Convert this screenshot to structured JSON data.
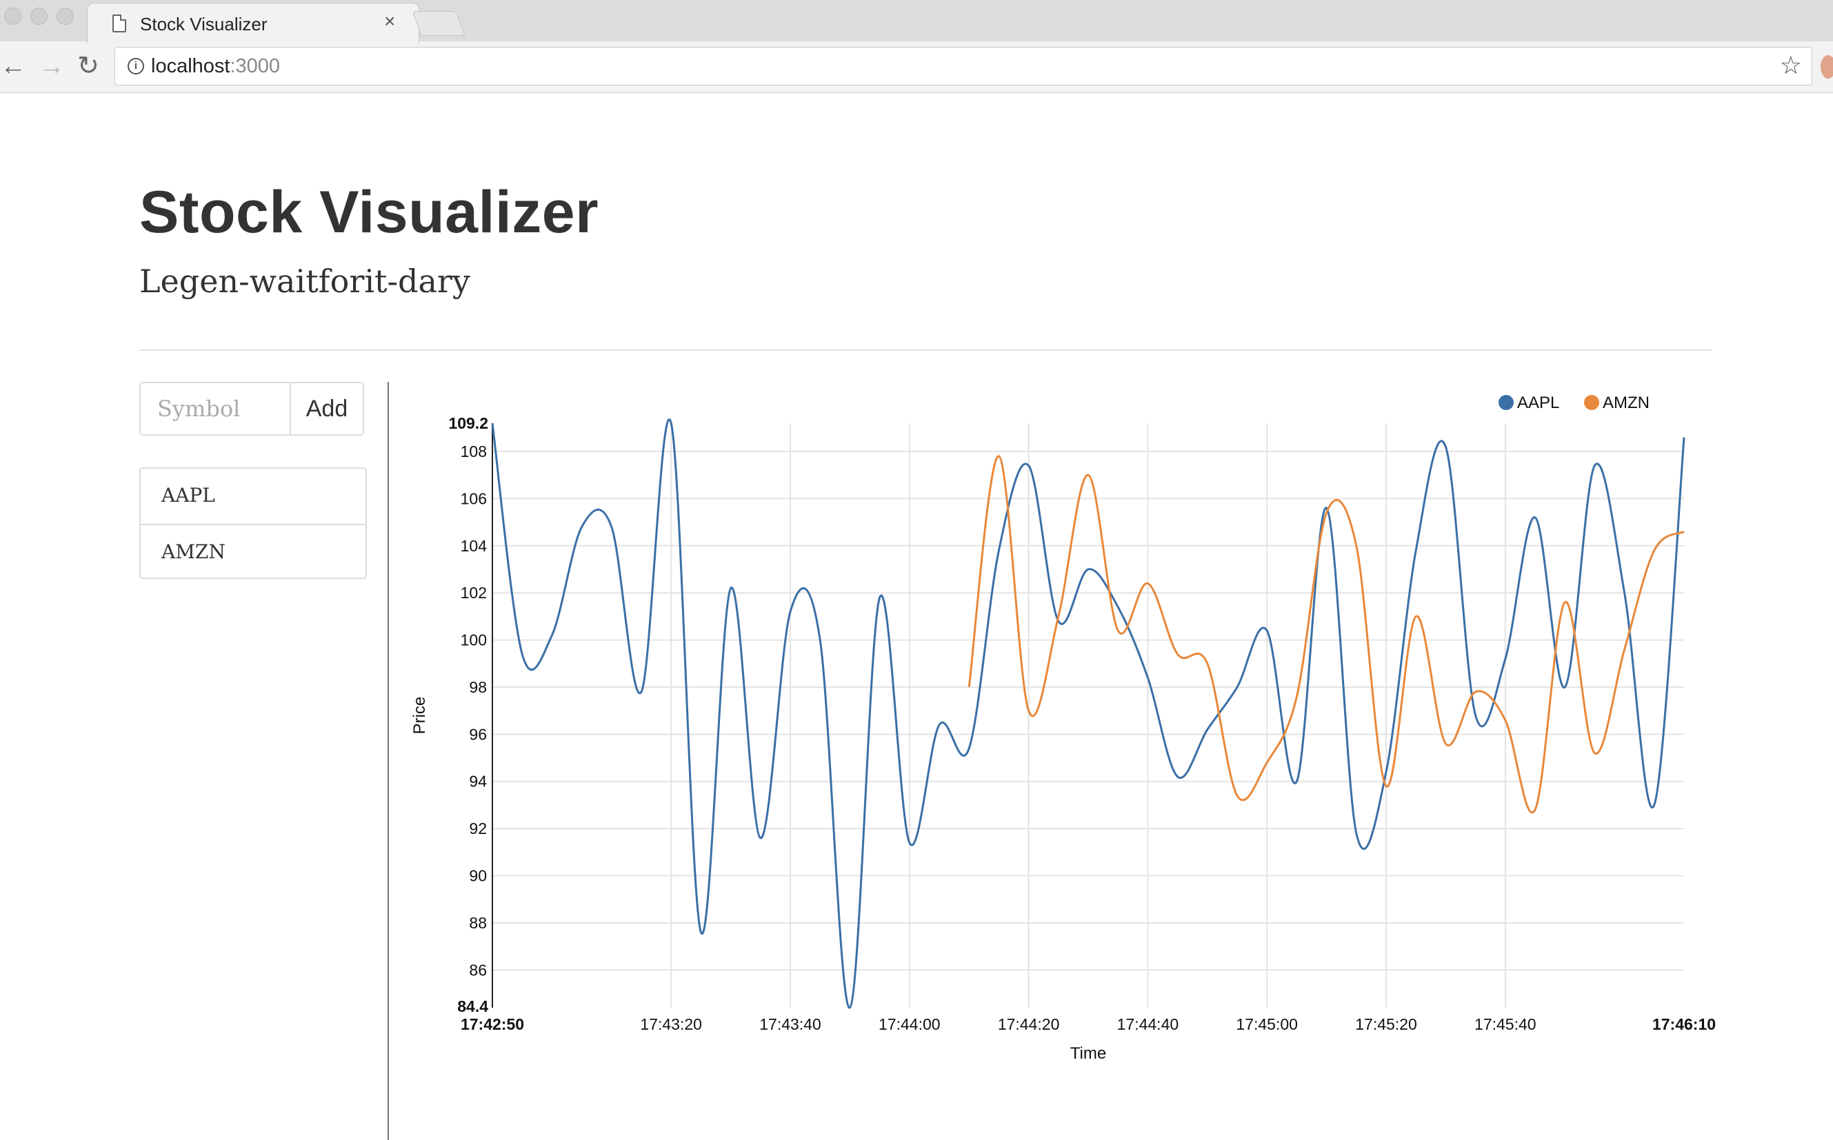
{
  "browser": {
    "tab_title": "Stock Visualizer",
    "tab_close": "×",
    "url_host": "localhost",
    "url_port": ":3000",
    "back": "←",
    "forward": "→",
    "reload": "↻",
    "info": "i",
    "star": "☆"
  },
  "page": {
    "title": "Stock Visualizer",
    "subtitle": "Legen-waitforit-dary"
  },
  "form": {
    "symbol_placeholder": "Symbol",
    "symbol_value": "",
    "add_label": "Add"
  },
  "symbols": [
    "AAPL",
    "AMZN"
  ],
  "chart_data": {
    "type": "line",
    "xlabel": "Time",
    "ylabel": "Price",
    "ylim": [
      84.4,
      109.2
    ],
    "xlim": [
      "17:42:50",
      "17:46:10"
    ],
    "yticks": [
      86,
      88,
      90,
      92,
      94,
      96,
      98,
      100,
      102,
      104,
      106,
      108
    ],
    "ytick_labels": [
      "86",
      "88",
      "90",
      "92",
      "94",
      "96",
      "98",
      "100",
      "102",
      "104",
      "106",
      "108"
    ],
    "ymin_label": "84.4",
    "ymax_label": "109.2",
    "xticks": [
      "17:43:20",
      "17:43:40",
      "17:44:00",
      "17:44:20",
      "17:44:40",
      "17:45:00",
      "17:45:20",
      "17:45:40"
    ],
    "xmin_label": "17:42:50",
    "xmax_label": "17:46:10",
    "grid": true,
    "legend_position": "top-right",
    "series": [
      {
        "name": "AAPL",
        "color": "#3a6fa6",
        "points": [
          [
            "17:42:50",
            109.2
          ],
          [
            "17:42:55",
            99.4
          ],
          [
            "17:43:00",
            100.2
          ],
          [
            "17:43:05",
            104.8
          ],
          [
            "17:43:10",
            104.8
          ],
          [
            "17:43:15",
            97.8
          ],
          [
            "17:43:20",
            109.2
          ],
          [
            "17:43:25",
            87.6
          ],
          [
            "17:43:30",
            102.2
          ],
          [
            "17:43:35",
            91.6
          ],
          [
            "17:43:40",
            101.2
          ],
          [
            "17:43:45",
            100.0
          ],
          [
            "17:43:50",
            84.4
          ],
          [
            "17:43:55",
            101.8
          ],
          [
            "17:44:00",
            91.4
          ],
          [
            "17:44:05",
            96.4
          ],
          [
            "17:44:10",
            95.4
          ],
          [
            "17:44:15",
            103.8
          ],
          [
            "17:44:20",
            107.4
          ],
          [
            "17:44:25",
            100.8
          ],
          [
            "17:44:30",
            103.0
          ],
          [
            "17:44:35",
            101.4
          ],
          [
            "17:44:40",
            98.4
          ],
          [
            "17:44:45",
            94.2
          ],
          [
            "17:44:50",
            96.2
          ],
          [
            "17:44:55",
            98.0
          ],
          [
            "17:45:00",
            100.4
          ],
          [
            "17:45:05",
            94.0
          ],
          [
            "17:45:10",
            105.6
          ],
          [
            "17:45:15",
            91.8
          ],
          [
            "17:45:20",
            94.4
          ],
          [
            "17:45:25",
            103.8
          ],
          [
            "17:45:30",
            108.2
          ],
          [
            "17:45:35",
            96.8
          ],
          [
            "17:45:40",
            99.2
          ],
          [
            "17:45:45",
            105.2
          ],
          [
            "17:45:50",
            98.0
          ],
          [
            "17:45:55",
            107.4
          ],
          [
            "17:46:00",
            102.0
          ],
          [
            "17:46:05",
            93.0
          ],
          [
            "17:46:10",
            108.6
          ]
        ]
      },
      {
        "name": "AMZN",
        "color": "#e8883a",
        "points": [
          [
            "17:44:10",
            98.0
          ],
          [
            "17:44:15",
            107.8
          ],
          [
            "17:44:20",
            97.0
          ],
          [
            "17:44:25",
            101.0
          ],
          [
            "17:44:30",
            107.0
          ],
          [
            "17:44:35",
            100.4
          ],
          [
            "17:44:40",
            102.4
          ],
          [
            "17:44:45",
            99.4
          ],
          [
            "17:44:50",
            99.0
          ],
          [
            "17:44:55",
            93.4
          ],
          [
            "17:45:00",
            94.8
          ],
          [
            "17:45:05",
            97.6
          ],
          [
            "17:45:10",
            105.4
          ],
          [
            "17:45:15",
            104.0
          ],
          [
            "17:45:20",
            93.8
          ],
          [
            "17:45:25",
            101.0
          ],
          [
            "17:45:30",
            95.6
          ],
          [
            "17:45:35",
            97.8
          ],
          [
            "17:45:40",
            96.6
          ],
          [
            "17:45:45",
            92.8
          ],
          [
            "17:45:50",
            101.6
          ],
          [
            "17:45:55",
            95.2
          ],
          [
            "17:46:00",
            99.6
          ],
          [
            "17:46:05",
            103.8
          ],
          [
            "17:46:10",
            104.6
          ]
        ]
      }
    ]
  }
}
